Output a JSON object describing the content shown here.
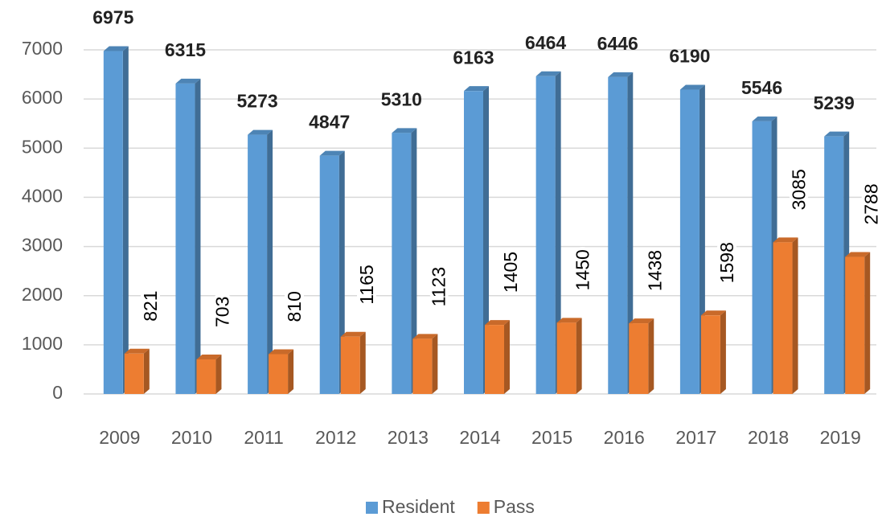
{
  "chart_data": {
    "type": "bar",
    "categories": [
      "2009",
      "2010",
      "2011",
      "2012",
      "2013",
      "2014",
      "2015",
      "2016",
      "2017",
      "2018",
      "2019"
    ],
    "series": [
      {
        "name": "Resident",
        "color": "#5b9bd5",
        "values": [
          6975,
          6315,
          5273,
          4847,
          5310,
          6163,
          6464,
          6446,
          6190,
          5546,
          5239
        ]
      },
      {
        "name": "Pass",
        "color": "#ed7d31",
        "values": [
          821,
          703,
          810,
          1165,
          1123,
          1405,
          1450,
          1438,
          1598,
          3085,
          2788
        ]
      }
    ],
    "ylim": [
      0,
      7000
    ],
    "yticks": [
      0,
      1000,
      2000,
      3000,
      4000,
      5000,
      6000,
      7000
    ],
    "grid": true,
    "legend": "bottom"
  }
}
